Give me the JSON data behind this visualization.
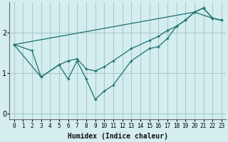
{
  "title": "",
  "xlabel": "Humidex (Indice chaleur)",
  "ylabel": "",
  "background_color": "#d4edee",
  "grid_color": "#aacccc",
  "line_color": "#1a7070",
  "xlim": [
    -0.5,
    23.5
  ],
  "ylim": [
    -0.15,
    2.75
  ],
  "xticks": [
    0,
    1,
    2,
    3,
    4,
    5,
    6,
    7,
    8,
    9,
    10,
    11,
    12,
    13,
    14,
    15,
    16,
    17,
    18,
    19,
    20,
    21,
    22,
    23
  ],
  "yticks": [
    0,
    1,
    2
  ],
  "line1_x": [
    0,
    2,
    3,
    5,
    6,
    7,
    8,
    9,
    10,
    11,
    13,
    15,
    16,
    17,
    18,
    19,
    20,
    21,
    22,
    23
  ],
  "line1_y": [
    1.7,
    1.55,
    0.9,
    1.2,
    0.85,
    1.3,
    0.85,
    0.35,
    0.55,
    0.7,
    1.3,
    1.6,
    1.65,
    1.85,
    2.15,
    2.3,
    2.5,
    2.6,
    2.35,
    2.3
  ],
  "line2_x": [
    0,
    3,
    5,
    6,
    7,
    8,
    9,
    10,
    11,
    13,
    15,
    16,
    17,
    18,
    19,
    20,
    21,
    22,
    23
  ],
  "line2_y": [
    1.7,
    0.9,
    1.2,
    1.3,
    1.35,
    1.1,
    1.05,
    1.15,
    1.3,
    1.6,
    1.8,
    1.9,
    2.05,
    2.15,
    2.3,
    2.5,
    2.6,
    2.35,
    2.3
  ],
  "line3_x": [
    0,
    20,
    22,
    23
  ],
  "line3_y": [
    1.7,
    2.5,
    2.35,
    2.3
  ]
}
